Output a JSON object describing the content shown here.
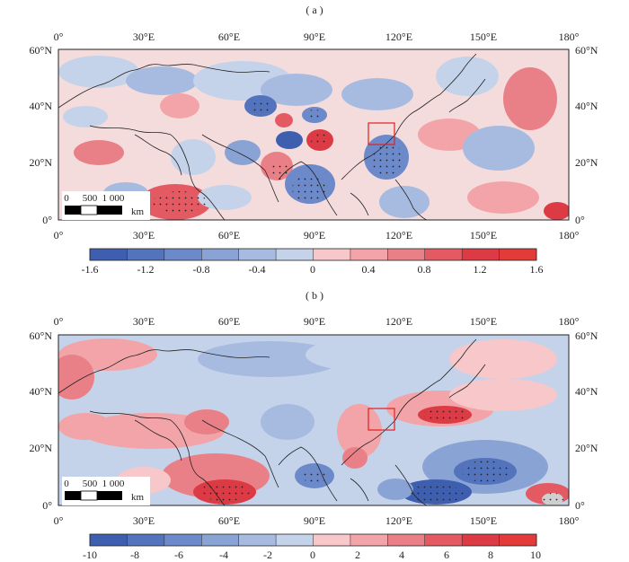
{
  "panels": [
    {
      "id": "a",
      "label": "( a )",
      "lon_ticks": [
        "0°",
        "30°E",
        "60°E",
        "90°E",
        "120°E",
        "150°E",
        "180°"
      ],
      "lat_ticks_left": [
        "60°N",
        "40°N",
        "20°N",
        "0°"
      ],
      "lat_ticks_right": [
        "60°N",
        "40°N",
        "20°N",
        "0°"
      ],
      "scale_bar": {
        "labels": [
          "0",
          "500",
          "1 000"
        ],
        "unit": "km"
      },
      "colorbar": {
        "tick_labels": [
          "-1.6",
          "-1.2",
          "-0.8",
          "-0.4",
          "0",
          "0.4",
          "0.8",
          "1.2",
          "1.6"
        ],
        "min": -1.6,
        "max": 1.6
      },
      "highlight_box": {
        "lon": [
          110,
          120
        ],
        "lat": [
          28,
          36
        ]
      }
    },
    {
      "id": "b",
      "label": "( b )",
      "lon_ticks": [
        "0°",
        "30°E",
        "60°E",
        "90°E",
        "120°E",
        "150°E",
        "180°"
      ],
      "lat_ticks_left": [
        "60°N",
        "40°N",
        "20°N",
        "0°"
      ],
      "lat_ticks_right": [
        "60°N",
        "40°N",
        "20°N",
        "0°"
      ],
      "scale_bar": {
        "labels": [
          "0",
          "500",
          "1 000"
        ],
        "unit": "km"
      },
      "colorbar": {
        "tick_labels": [
          "-10",
          "-8",
          "-6",
          "-4",
          "-2",
          "0",
          "2",
          "4",
          "6",
          "8",
          "10"
        ],
        "min": -10,
        "max": 10
      },
      "highlight_box": {
        "lon": [
          110,
          120
        ],
        "lat": [
          28,
          36
        ]
      }
    }
  ],
  "colors": {
    "neg": [
      "#3e5fb0",
      "#5373bd",
      "#6c89c9",
      "#8aa3d5",
      "#a7bbe0",
      "#c5d3ea"
    ],
    "pos": [
      "#f8c7c9",
      "#f2a4a8",
      "#ea8087",
      "#e35a63",
      "#dc3b45",
      "#e33a3a"
    ],
    "box": "#e02020"
  }
}
